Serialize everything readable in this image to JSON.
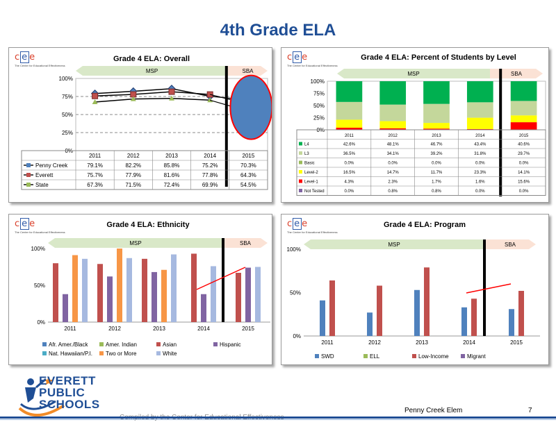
{
  "page": {
    "title": "4th Grade ELA",
    "school": "Penny Creek Elem",
    "page_number": "7",
    "compiled_by": "Compiled by the Center for Educational Effectiveness"
  },
  "logo": {
    "letters": [
      "c",
      "e",
      "e"
    ],
    "tagline": "The Center for Educational Effectiveness"
  },
  "district": {
    "lines": [
      "EVERETT",
      "PUBLIC",
      "SCHOOLS"
    ]
  },
  "arrows": {
    "left": "MSP",
    "right": "SBA"
  },
  "colors": {
    "accent": "#1f4e95",
    "msp_arrow": "#d9e8c8",
    "sba_arrow": "#fbe2d5",
    "blue": "#4f81bd",
    "red": "#c0504d",
    "green": "#9bbb59",
    "purple": "#8064a2",
    "teal": "#4bacc6",
    "orange": "#f79646",
    "lightblue": "#a6b9e0",
    "trend": "#ff0000"
  },
  "chart_data": [
    {
      "type": "line",
      "title": "Grade 4 ELA: Overall",
      "categories": [
        "2011",
        "2012",
        "2013",
        "2014",
        "2015"
      ],
      "yticks": [
        "100%",
        "75%",
        "50%",
        "25%",
        "0%"
      ],
      "ylim": [
        0,
        100
      ],
      "series": [
        {
          "name": "Penny Creek",
          "values": [
            79.1,
            82.2,
            85.8,
            75.2,
            70.3
          ],
          "labels": [
            "79.1%",
            "82.2%",
            "85.8%",
            "75.2%",
            "70.3%"
          ],
          "color": "#1f3a6e"
        },
        {
          "name": "Everett",
          "values": [
            75.7,
            77.9,
            81.6,
            77.8,
            64.3
          ],
          "labels": [
            "75.7%",
            "77.9%",
            "81.6%",
            "77.8%",
            "64.3%"
          ],
          "color": "#c0504d"
        },
        {
          "name": "State",
          "values": [
            67.3,
            71.5,
            72.4,
            69.9,
            54.5
          ],
          "labels": [
            "67.3%",
            "71.5%",
            "72.4%",
            "69.9%",
            "54.5%"
          ],
          "color": "#9bbb59"
        }
      ],
      "highlight_ellipse_color": "#4f81bd"
    },
    {
      "type": "bar",
      "stacked": true,
      "title": "Grade 4 ELA: Percent of Students by Level",
      "categories": [
        "2011",
        "2012",
        "2013",
        "2014",
        "2015"
      ],
      "yticks": [
        "100%",
        "75%",
        "50%",
        "25%",
        "0%"
      ],
      "ylim": [
        0,
        100
      ],
      "series": [
        {
          "name": "L4",
          "values": [
            42.6,
            48.1,
            46.7,
            43.4,
            40.6
          ],
          "labels": [
            "42.6%",
            "48.1%",
            "46.7%",
            "43.4%",
            "40.6%"
          ],
          "color": "#00b050"
        },
        {
          "name": "L3",
          "values": [
            36.5,
            34.1,
            39.2,
            31.8,
            29.7
          ],
          "labels": [
            "36.5%",
            "34.1%",
            "39.2%",
            "31.8%",
            "29.7%"
          ],
          "color": "#c4d79b"
        },
        {
          "name": "Basic",
          "values": [
            0.0,
            0.0,
            0.0,
            0.0,
            0.0
          ],
          "labels": [
            "0.0%",
            "0.0%",
            "0.0%",
            "0.0%",
            "0.0%"
          ],
          "color": "#9bbb59"
        },
        {
          "name": "Level-2",
          "values": [
            16.5,
            14.7,
            11.7,
            23.3,
            14.1
          ],
          "labels": [
            "16.5%",
            "14.7%",
            "11.7%",
            "23.3%",
            "14.1%"
          ],
          "color": "#ffff00"
        },
        {
          "name": "Level-1",
          "values": [
            4.3,
            2.3,
            1.7,
            1.6,
            15.6
          ],
          "labels": [
            "4.3%",
            "2.3%",
            "1.7%",
            "1.6%",
            "15.6%"
          ],
          "color": "#ff0000"
        },
        {
          "name": "Not Tested",
          "values": [
            0.0,
            0.8,
            0.8,
            0.0,
            0.0
          ],
          "labels": [
            "0.0%",
            "0.8%",
            "0.8%",
            "0.0%",
            "0.0%"
          ],
          "color": "#8064a2"
        }
      ]
    },
    {
      "type": "bar",
      "title": "Grade 4 ELA: Ethnicity",
      "categories": [
        "2011",
        "2012",
        "2013",
        "2014",
        "2015"
      ],
      "yticks": [
        "100%",
        "50%",
        "0%"
      ],
      "ylim": [
        0,
        100
      ],
      "series": [
        {
          "name": "Afr. Amer./Black",
          "values": [
            null,
            null,
            null,
            null,
            null
          ],
          "color": "#4f81bd"
        },
        {
          "name": "Amer. Indian",
          "values": [
            null,
            null,
            null,
            null,
            null
          ],
          "color": "#9bbb59"
        },
        {
          "name": "Asian",
          "values": [
            80,
            79,
            86,
            93,
            67
          ],
          "color": "#c0504d"
        },
        {
          "name": "Hispanic",
          "values": [
            38,
            62,
            68,
            38,
            74
          ],
          "color": "#8064a2"
        },
        {
          "name": "Nat. Hawaiian/P.I.",
          "values": [
            null,
            null,
            null,
            null,
            null
          ],
          "color": "#4bacc6"
        },
        {
          "name": "Two or More",
          "values": [
            91,
            100,
            71,
            null,
            null
          ],
          "color": "#f79646"
        },
        {
          "name": "White",
          "values": [
            86,
            87,
            92,
            76,
            75
          ],
          "color": "#a6b9e0"
        }
      ]
    },
    {
      "type": "bar",
      "title": "Grade 4 ELA: Program",
      "categories": [
        "2011",
        "2012",
        "2013",
        "2014",
        "2015"
      ],
      "yticks": [
        "100%",
        "50%",
        "0%"
      ],
      "ylim": [
        0,
        100
      ],
      "series": [
        {
          "name": "SWD",
          "values": [
            41,
            27,
            53,
            33,
            31
          ],
          "color": "#4f81bd"
        },
        {
          "name": "ELL",
          "values": [
            null,
            null,
            null,
            null,
            null
          ],
          "color": "#9bbb59"
        },
        {
          "name": "Low-Income",
          "values": [
            64,
            58,
            79,
            43,
            52
          ],
          "color": "#c0504d"
        },
        {
          "name": "Migrant",
          "values": [
            null,
            null,
            null,
            null,
            null
          ],
          "color": "#8064a2"
        }
      ]
    }
  ]
}
